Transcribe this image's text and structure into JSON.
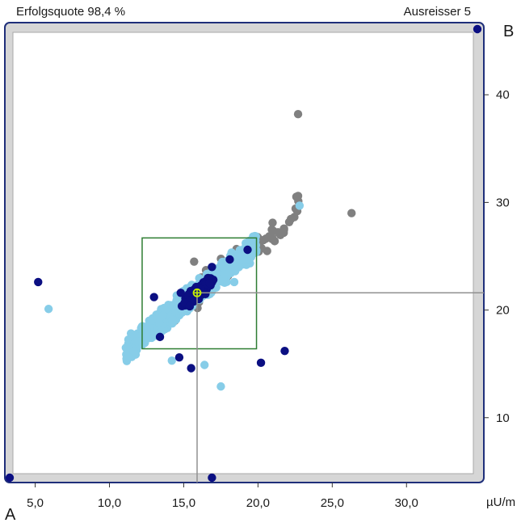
{
  "header": {
    "left": "Erfolgsquote 98,4 %",
    "right": "Ausreisser 5"
  },
  "corner_labels": {
    "top_right": "B",
    "bottom_left": "A"
  },
  "x_unit": "µU/m",
  "colors": {
    "frame": "#1f2f7a",
    "frame_fill": "#d6d6d6",
    "light_blue": "#87cde8",
    "dark_blue": "#0b0f82",
    "gray": "#808080",
    "box": "#2e7d32",
    "crosshair": "#909090",
    "marker": "#c6f000"
  },
  "chart_data": {
    "type": "scatter",
    "x_ticks": [
      5,
      10,
      15,
      20,
      25,
      30
    ],
    "x_tick_labels": [
      "5,0",
      "10,0",
      "15,0",
      "20,0",
      "25,0",
      "30,0"
    ],
    "y_ticks": [
      10,
      20,
      30,
      40
    ],
    "y_tick_labels": [
      "10",
      "20",
      "30",
      "40"
    ],
    "xlim": [
      3.5,
      34.5
    ],
    "ylim": [
      4.8,
      45.8
    ],
    "mean_point": [
      15.9,
      21.6
    ],
    "target_box": {
      "x": [
        12.2,
        19.9
      ],
      "y": [
        16.4,
        26.7
      ]
    },
    "cloud": {
      "light_blue": {
        "n": 700,
        "x_range": [
          11.1,
          19.9
        ],
        "slope": 1.12,
        "spread": 0.7
      },
      "gray": {
        "n": 90,
        "x_range": [
          13.5,
          22.8
        ],
        "slope": 1.12,
        "spread": 0.9
      },
      "dark_blue": {
        "n": 170,
        "center": [
          15.9,
          21.6
        ],
        "spread_x": 1.0,
        "spread_y": 0.9
      }
    },
    "points": {
      "light_blue": [
        [
          5.9,
          20.1
        ],
        [
          17.5,
          12.9
        ],
        [
          16.4,
          14.9
        ],
        [
          14.2,
          15.3
        ],
        [
          18.4,
          22.6
        ],
        [
          22.8,
          29.7
        ]
      ],
      "gray": [
        [
          22.7,
          38.2
        ],
        [
          26.3,
          29.0
        ],
        [
          22.7,
          30.6
        ],
        [
          15.7,
          24.5
        ]
      ],
      "dark_blue": [
        [
          5.2,
          22.6
        ],
        [
          21.8,
          16.2
        ],
        [
          20.2,
          15.1
        ],
        [
          14.7,
          15.6
        ],
        [
          15.5,
          14.6
        ],
        [
          13.4,
          17.5
        ],
        [
          13.0,
          21.2
        ],
        [
          16.9,
          24.0
        ],
        [
          18.1,
          24.7
        ],
        [
          19.3,
          25.6
        ],
        [
          14.8,
          21.6
        ]
      ]
    },
    "outliers": [
      [
        3.8,
        4.8
      ],
      [
        16.9,
        4.8
      ],
      [
        34.1,
        45.8
      ]
    ]
  }
}
